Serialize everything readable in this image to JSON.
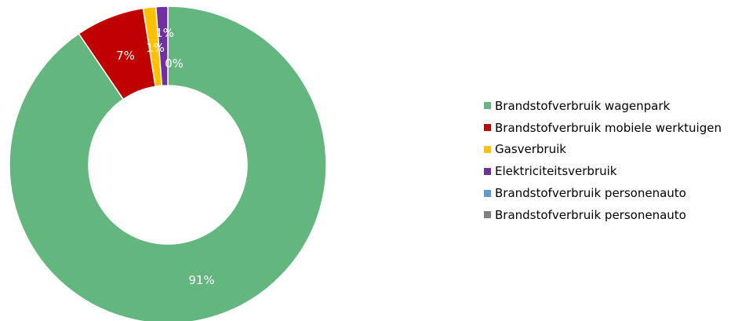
{
  "chart_data": {
    "type": "pie",
    "title": "",
    "categories": [
      "Brandstofverbruik wagenpark",
      "Brandstofverbruik mobiele werktuigen",
      "Gasverbruik",
      "Elektriciteitsverbruik",
      "Brandstofverbruik personenauto",
      "Brandstofverbruik personenauto"
    ],
    "values": [
      91,
      7,
      1,
      1,
      0,
      0
    ],
    "data_labels": [
      "91%",
      "7%",
      "1%",
      "1%",
      "0%",
      ""
    ],
    "colors": [
      "#63b77e",
      "#c00000",
      "#ffc000",
      "#7030a0",
      "#5b9bd5",
      "#7f7f7f"
    ],
    "donut": true,
    "legend_position": "right"
  }
}
